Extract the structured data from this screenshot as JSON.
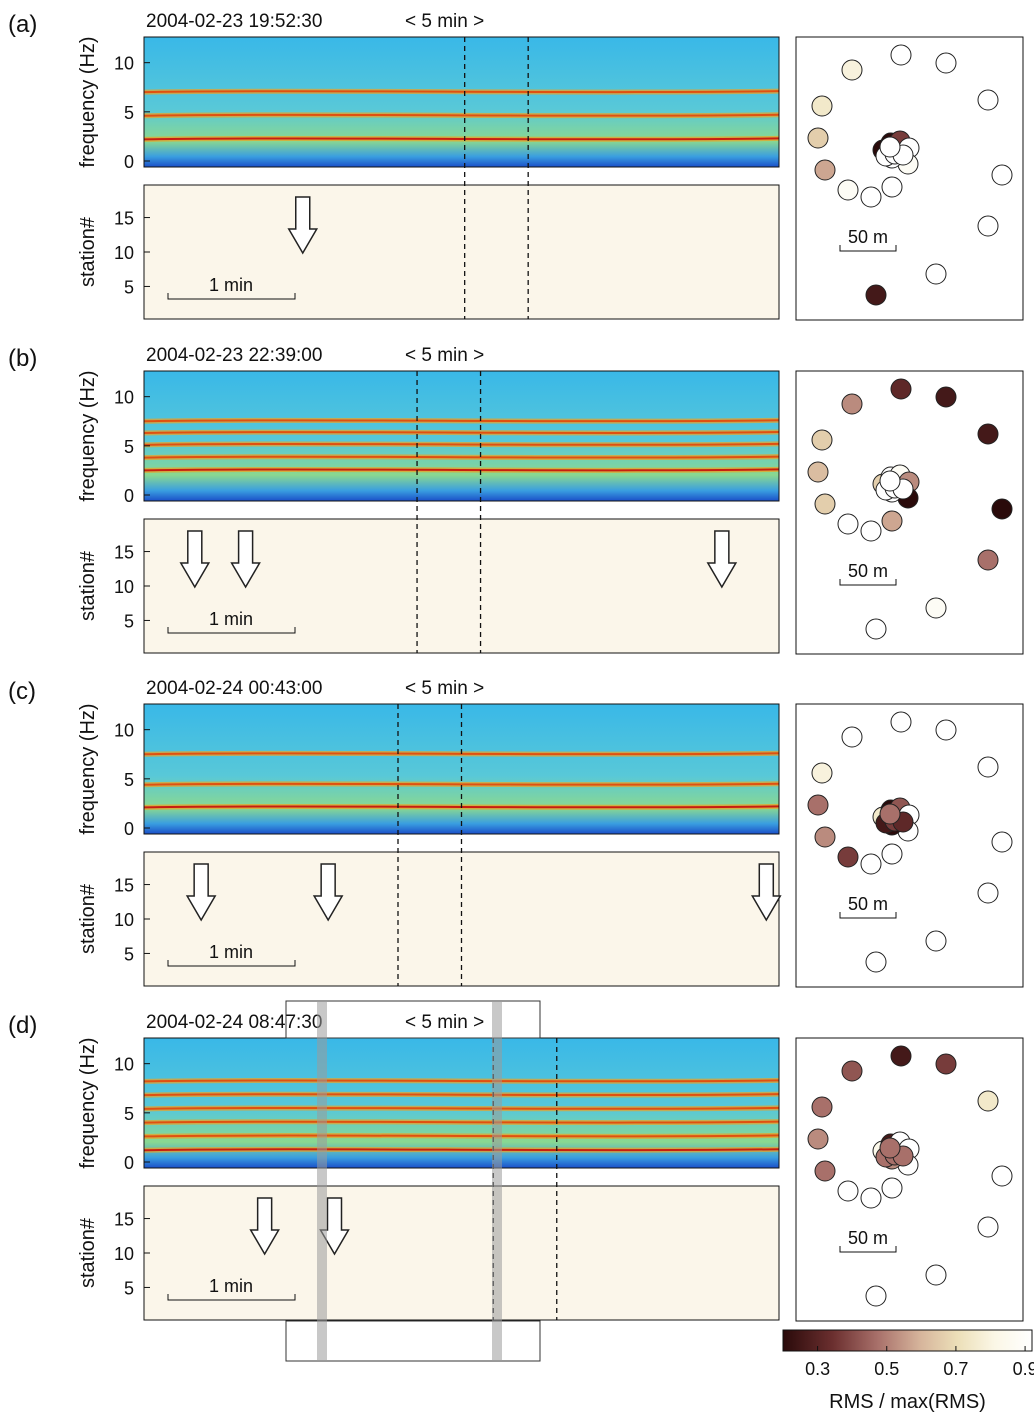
{
  "figure": {
    "panels": [
      {
        "id": "a",
        "label": "(a)",
        "timestamp": "2004-02-23 19:52:30",
        "duration_label": "< 5 min >",
        "scale_time_label": "1 min",
        "scale_dist_label": "50 m"
      },
      {
        "id": "b",
        "label": "(b)",
        "timestamp": "2004-02-23 22:39:00",
        "duration_label": "< 5 min >",
        "scale_time_label": "1 min",
        "scale_dist_label": "50 m"
      },
      {
        "id": "c",
        "label": "(c)",
        "timestamp": "2004-02-24 00:43:00",
        "duration_label": "< 5 min >",
        "scale_time_label": "1 min",
        "scale_dist_label": "50 m"
      },
      {
        "id": "d",
        "label": "(d)",
        "timestamp": "2004-02-24 08:47:30",
        "duration_label": "< 5 min >",
        "scale_time_label": "1 min",
        "scale_dist_label": "50 m"
      }
    ],
    "axes": {
      "spectrogram_ylabel": "frequency (Hz)",
      "spectrogram_yticks": [
        "10",
        "5",
        "0"
      ],
      "station_ylabel": "station#",
      "station_yticks": [
        "15",
        "10",
        "5"
      ]
    },
    "colorbar": {
      "label": "RMS / max(RMS)",
      "ticks": [
        "0.3",
        "0.5",
        "0.7",
        "0.9"
      ],
      "colors": [
        "#2a0a0a",
        "#6b2f2f",
        "#a8706a",
        "#d6b49b",
        "#ecdfb8",
        "#fbf7e6",
        "#ffffff"
      ]
    }
  },
  "chart_data": [
    {
      "type": "heatmap",
      "panel": "a",
      "spectrogram": {
        "ylabel": "frequency (Hz)",
        "ylim": [
          0,
          12
        ],
        "harmonic_freqs_hz": [
          2.2,
          4.6,
          7.0
        ],
        "marker_times_fraction": [
          0.505,
          0.605
        ]
      },
      "station_rms": {
        "ylabel": "station#",
        "ylim": [
          1,
          19
        ],
        "arrow_time_fractions": [
          0.25
        ]
      },
      "station_map": {
        "scale_label": "50 m",
        "rms_ratio": [
          0.25,
          0.95,
          0.95,
          0.95,
          0.95,
          0.95,
          0.95,
          0.8,
          0.75,
          0.65,
          0.55,
          0.9,
          0.95,
          0.95,
          0.2,
          0.2,
          0.35,
          0.95,
          0.9,
          0.95,
          0.95,
          0.95,
          0.95,
          0.95
        ]
      }
    },
    {
      "type": "heatmap",
      "panel": "b",
      "spectrogram": {
        "ylabel": "frequency (Hz)",
        "ylim": [
          0,
          12
        ],
        "harmonic_freqs_hz": [
          2.5,
          3.8,
          5.1,
          6.3,
          7.5
        ],
        "marker_times_fraction": [
          0.43,
          0.53
        ]
      },
      "station_rms": {
        "ylabel": "station#",
        "ylim": [
          1,
          19
        ],
        "arrow_time_fractions": [
          0.08,
          0.16,
          0.91
        ]
      },
      "station_map": {
        "scale_label": "50 m",
        "rms_ratio": [
          0.95,
          0.9,
          0.45,
          0.2,
          0.25,
          0.25,
          0.3,
          0.5,
          0.65,
          0.6,
          0.65,
          0.95,
          0.95,
          0.55,
          0.65,
          0.95,
          0.9,
          0.5,
          0.2,
          0.95,
          0.95,
          0.95,
          0.95,
          0.95
        ]
      }
    },
    {
      "type": "heatmap",
      "panel": "c",
      "spectrogram": {
        "ylabel": "frequency (Hz)",
        "ylim": [
          0,
          12
        ],
        "harmonic_freqs_hz": [
          2.1,
          4.4,
          7.5
        ],
        "marker_times_fraction": [
          0.4,
          0.5
        ]
      },
      "station_rms": {
        "ylabel": "station#",
        "ylim": [
          1,
          19
        ],
        "arrow_time_fractions": [
          0.09,
          0.29,
          0.98
        ]
      },
      "station_map": {
        "scale_label": "50 m",
        "rms_ratio": [
          0.95,
          0.95,
          0.95,
          0.95,
          0.95,
          0.95,
          0.95,
          0.95,
          0.8,
          0.45,
          0.5,
          0.35,
          0.95,
          0.95,
          0.75,
          0.2,
          0.4,
          0.95,
          0.95,
          0.2,
          0.25,
          0.35,
          0.3,
          0.45
        ]
      }
    },
    {
      "type": "heatmap",
      "panel": "d",
      "spectrogram": {
        "ylabel": "frequency (Hz)",
        "ylim": [
          0,
          12
        ],
        "harmonic_freqs_hz": [
          1.2,
          2.6,
          4.0,
          5.4,
          6.8,
          8.2
        ],
        "marker_times_fraction": [
          0.55,
          0.65
        ]
      },
      "station_rms": {
        "ylabel": "station#",
        "ylim": [
          1,
          19
        ],
        "arrow_time_fractions": [
          0.19,
          0.3
        ]
      },
      "station_map": {
        "scale_label": "50 m",
        "rms_ratio": [
          0.95,
          0.95,
          0.95,
          0.95,
          0.75,
          0.35,
          0.25,
          0.4,
          0.45,
          0.5,
          0.45,
          0.95,
          0.95,
          0.95,
          0.85,
          0.25,
          0.95,
          0.95,
          0.95,
          0.5,
          0.45,
          0.45,
          0.45,
          0.45
        ]
      }
    }
  ]
}
